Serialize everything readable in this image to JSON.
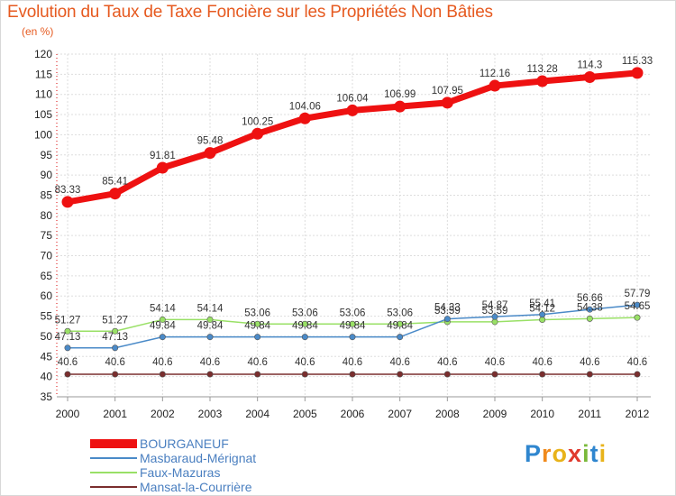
{
  "title": "Evolution du Taux de Taxe Foncière sur les Propriétés Non Bâties",
  "unit_label": "(en %)",
  "logo_text": "Proxiti",
  "chart_data": {
    "type": "line",
    "x": [
      "2000",
      "2001",
      "2002",
      "2003",
      "2004",
      "2005",
      "2006",
      "2007",
      "2008",
      "2009",
      "2010",
      "2011",
      "2012"
    ],
    "ylim": [
      35,
      120
    ],
    "yticks": [
      35,
      40,
      45,
      50,
      55,
      60,
      65,
      70,
      75,
      80,
      85,
      90,
      95,
      100,
      105,
      110,
      115,
      120
    ],
    "grid": true,
    "series": [
      {
        "name": "BOURGANEUF",
        "color": "#ee1111",
        "values": [
          83.33,
          85.41,
          91.81,
          95.48,
          100.25,
          104.06,
          106.04,
          106.99,
          107.95,
          112.16,
          113.28,
          114.3,
          115.33
        ],
        "labels": [
          "83.33",
          "85.41",
          "91.81",
          "95.48",
          "100.25",
          "104.06",
          "106.04",
          "106.99",
          "107.95",
          "112.16",
          "113.28",
          "114.3",
          "115.33"
        ]
      },
      {
        "name": "Masbaraud-Mérignat",
        "color": "#4a8ac8",
        "values": [
          47.13,
          47.13,
          49.84,
          49.84,
          49.84,
          49.84,
          49.84,
          49.84,
          54.33,
          54.87,
          55.41,
          56.66,
          57.79
        ],
        "labels": [
          "47.13",
          "47.13",
          "49.84",
          "49.84",
          "49.84",
          "49.84",
          "49.84",
          "49.84",
          "54.33",
          "54.87",
          "55.41",
          "56.66",
          "57.79"
        ]
      },
      {
        "name": "Faux-Mazuras",
        "color": "#99e066",
        "values": [
          51.27,
          51.27,
          54.14,
          54.14,
          53.06,
          53.06,
          53.06,
          53.06,
          53.59,
          53.59,
          54.12,
          54.38,
          54.65
        ],
        "labels": [
          "51.27",
          "51.27",
          "54.14",
          "54.14",
          "53.06",
          "53.06",
          "53.06",
          "53.06",
          "53.59",
          "53.59",
          "54.12",
          "54.38",
          "54.65"
        ]
      },
      {
        "name": "Mansat-la-Courrière",
        "color": "#7a2e2e",
        "values": [
          40.6,
          40.6,
          40.6,
          40.6,
          40.6,
          40.6,
          40.6,
          40.6,
          40.6,
          40.6,
          40.6,
          40.6,
          40.6
        ],
        "labels": [
          "40.6",
          "40.6",
          "40.6",
          "40.6",
          "40.6",
          "40.6",
          "40.6",
          "40.6",
          "40.6",
          "40.6",
          "40.6",
          "40.6",
          "40.6"
        ]
      }
    ]
  }
}
